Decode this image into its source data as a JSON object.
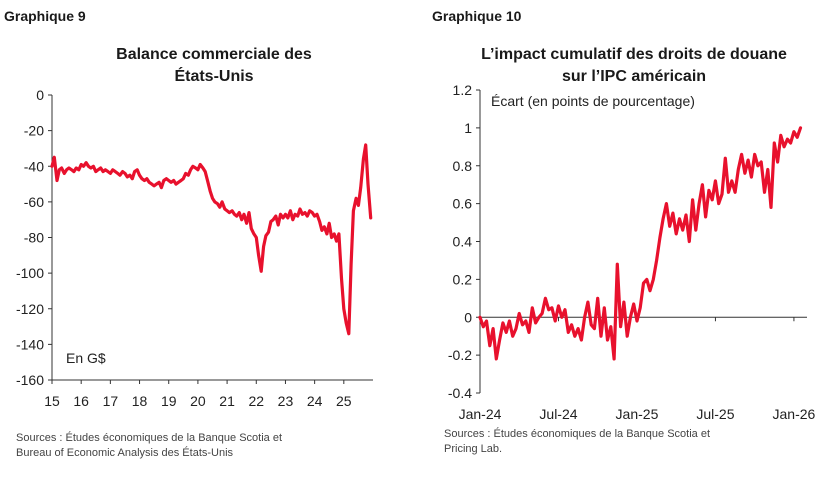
{
  "chart_data": [
    {
      "label": "Graphique 9",
      "type": "line",
      "title_lines": [
        "Balance commerciale des",
        "États-Unis"
      ],
      "unit_label": "En G$",
      "ylim": [
        -160,
        0
      ],
      "yticks": [
        0,
        -20,
        -40,
        -60,
        -80,
        -100,
        -120,
        -140,
        -160
      ],
      "xticks": [
        "15",
        "16",
        "17",
        "18",
        "19",
        "20",
        "21",
        "22",
        "23",
        "24",
        "25"
      ],
      "xlim": [
        2015,
        2026
      ],
      "color": "#e8112d",
      "series": [
        {
          "x": [
            2015.0,
            2015.08,
            2015.17,
            2015.25,
            2015.33,
            2015.42,
            2015.5,
            2015.58,
            2015.67,
            2015.75,
            2015.83,
            2015.92,
            2016.0,
            2016.08,
            2016.17,
            2016.25,
            2016.33,
            2016.42,
            2016.5,
            2016.58,
            2016.67,
            2016.75,
            2016.83,
            2016.92,
            2017.0,
            2017.08,
            2017.17,
            2017.25,
            2017.33,
            2017.42,
            2017.5,
            2017.58,
            2017.67,
            2017.75,
            2017.83,
            2017.92,
            2018.0,
            2018.08,
            2018.17,
            2018.25,
            2018.33,
            2018.42,
            2018.5,
            2018.58,
            2018.67,
            2018.75,
            2018.83,
            2018.92,
            2019.0,
            2019.08,
            2019.17,
            2019.25,
            2019.33,
            2019.42,
            2019.5,
            2019.58,
            2019.67,
            2019.75,
            2019.83,
            2019.92,
            2020.0,
            2020.08,
            2020.17,
            2020.25,
            2020.33,
            2020.42,
            2020.5,
            2020.58,
            2020.67,
            2020.75,
            2020.83,
            2020.92,
            2021.0,
            2021.08,
            2021.17,
            2021.25,
            2021.33,
            2021.42,
            2021.5,
            2021.58,
            2021.67,
            2021.75,
            2021.83,
            2021.92,
            2022.0,
            2022.08,
            2022.17,
            2022.25,
            2022.33,
            2022.42,
            2022.5,
            2022.58,
            2022.67,
            2022.75,
            2022.83,
            2022.92,
            2023.0,
            2023.08,
            2023.17,
            2023.25,
            2023.33,
            2023.42,
            2023.5,
            2023.58,
            2023.67,
            2023.75,
            2023.83,
            2023.92,
            2024.0,
            2024.08,
            2024.17,
            2024.25,
            2024.33,
            2024.42,
            2024.5,
            2024.58,
            2024.67,
            2024.75,
            2024.83,
            2024.92,
            2025.0,
            2025.08,
            2025.17,
            2025.25,
            2025.33,
            2025.42,
            2025.5,
            2025.58,
            2025.67,
            2025.75,
            2025.83,
            2025.92
          ],
          "y": [
            -40,
            -35,
            -48,
            -42,
            -41,
            -44,
            -42,
            -41,
            -42,
            -43,
            -41,
            -42,
            -39,
            -40,
            -38,
            -40,
            -41,
            -40,
            -43,
            -42,
            -41,
            -43,
            -42,
            -43,
            -44,
            -42,
            -43,
            -44,
            -45,
            -43,
            -44,
            -46,
            -45,
            -47,
            -43,
            -42,
            -45,
            -47,
            -48,
            -47,
            -49,
            -50,
            -51,
            -50,
            -49,
            -52,
            -48,
            -47,
            -48,
            -49,
            -48,
            -50,
            -49,
            -48,
            -47,
            -44,
            -45,
            -42,
            -40,
            -41,
            -42,
            -39,
            -41,
            -43,
            -48,
            -54,
            -58,
            -60,
            -61,
            -63,
            -60,
            -64,
            -65,
            -66,
            -65,
            -67,
            -68,
            -66,
            -70,
            -67,
            -72,
            -66,
            -75,
            -78,
            -80,
            -90,
            -99,
            -85,
            -79,
            -77,
            -71,
            -70,
            -68,
            -73,
            -67,
            -69,
            -67,
            -69,
            -65,
            -70,
            -67,
            -68,
            -64,
            -67,
            -66,
            -68,
            -65,
            -66,
            -68,
            -67,
            -71,
            -76,
            -74,
            -78,
            -72,
            -80,
            -78,
            -82,
            -78,
            -103,
            -120,
            -128,
            -134,
            -95,
            -65,
            -58,
            -62,
            -52,
            -36,
            -28,
            -50,
            -69
          ]
        }
      ],
      "sources": [
        "Sources : Études économiques de la Banque Scotia et",
        "Bureau of Economic Analysis des États-Unis"
      ]
    },
    {
      "label": "Graphique 10",
      "type": "line",
      "title_lines": [
        "L’impact cumulatif des droits de douane",
        "sur l’IPC américain"
      ],
      "unit_label": "Écart (en points de pourcentage)",
      "ylim": [
        -0.4,
        1.2
      ],
      "yticks": [
        1.2,
        1,
        0.8,
        0.6,
        0.4,
        0.2,
        0,
        -0.2,
        -0.4
      ],
      "xticks": [
        "Jan-24",
        "Jul-24",
        "Jan-25",
        "Jul-25",
        "Jan-26"
      ],
      "xlim": [
        0,
        25
      ],
      "color": "#e8112d",
      "series": [
        {
          "x": [
            0.0,
            0.25,
            0.5,
            0.75,
            1.0,
            1.25,
            1.5,
            1.75,
            2.0,
            2.25,
            2.5,
            2.75,
            3.0,
            3.25,
            3.5,
            3.75,
            4.0,
            4.25,
            4.5,
            4.75,
            5.0,
            5.25,
            5.5,
            5.75,
            6.0,
            6.25,
            6.5,
            6.75,
            7.0,
            7.25,
            7.5,
            7.75,
            8.0,
            8.25,
            8.5,
            8.75,
            9.0,
            9.25,
            9.5,
            9.75,
            10.0,
            10.25,
            10.5,
            10.75,
            11.0,
            11.25,
            11.5,
            11.75,
            12.0,
            12.25,
            12.5,
            12.75,
            13.0,
            13.25,
            13.5,
            13.75,
            14.0,
            14.25,
            14.5,
            14.75,
            15.0,
            15.25,
            15.5,
            15.75,
            16.0,
            16.25,
            16.5,
            16.75,
            17.0,
            17.25,
            17.5,
            17.75,
            18.0,
            18.25,
            18.5,
            18.75,
            19.0,
            19.25,
            19.5,
            19.75,
            20.0,
            20.25,
            20.5,
            20.75,
            21.0,
            21.25,
            21.5,
            21.75,
            22.0,
            22.25,
            22.5,
            22.75,
            23.0,
            23.25,
            23.5,
            23.75,
            24.0,
            24.25,
            24.5
          ],
          "y": [
            0.0,
            -0.05,
            -0.02,
            -0.15,
            -0.06,
            -0.22,
            -0.12,
            -0.03,
            -0.08,
            -0.02,
            -0.1,
            -0.06,
            0.02,
            -0.04,
            -0.02,
            -0.08,
            0.05,
            -0.03,
            0.0,
            0.02,
            0.1,
            0.04,
            0.05,
            -0.02,
            0.06,
            0.0,
            0.04,
            -0.08,
            -0.04,
            -0.1,
            -0.06,
            -0.12,
            0.0,
            0.08,
            -0.04,
            -0.06,
            0.1,
            -0.1,
            0.05,
            -0.12,
            -0.05,
            -0.22,
            0.28,
            -0.05,
            0.08,
            -0.1,
            0.0,
            0.07,
            -0.02,
            0.05,
            0.18,
            0.2,
            0.14,
            0.2,
            0.3,
            0.42,
            0.52,
            0.6,
            0.48,
            0.55,
            0.44,
            0.52,
            0.46,
            0.54,
            0.4,
            0.62,
            0.46,
            0.6,
            0.7,
            0.53,
            0.67,
            0.62,
            0.72,
            0.6,
            0.65,
            0.84,
            0.66,
            0.72,
            0.66,
            0.78,
            0.86,
            0.76,
            0.83,
            0.74,
            0.86,
            0.8,
            0.82,
            0.66,
            0.78,
            0.58,
            0.92,
            0.82,
            0.96,
            0.9,
            0.94,
            0.92,
            0.98,
            0.95,
            1.0
          ]
        }
      ],
      "sources": [
        "Sources : Études économiques de la Banque Scotia et",
        "Pricing Lab."
      ]
    }
  ]
}
